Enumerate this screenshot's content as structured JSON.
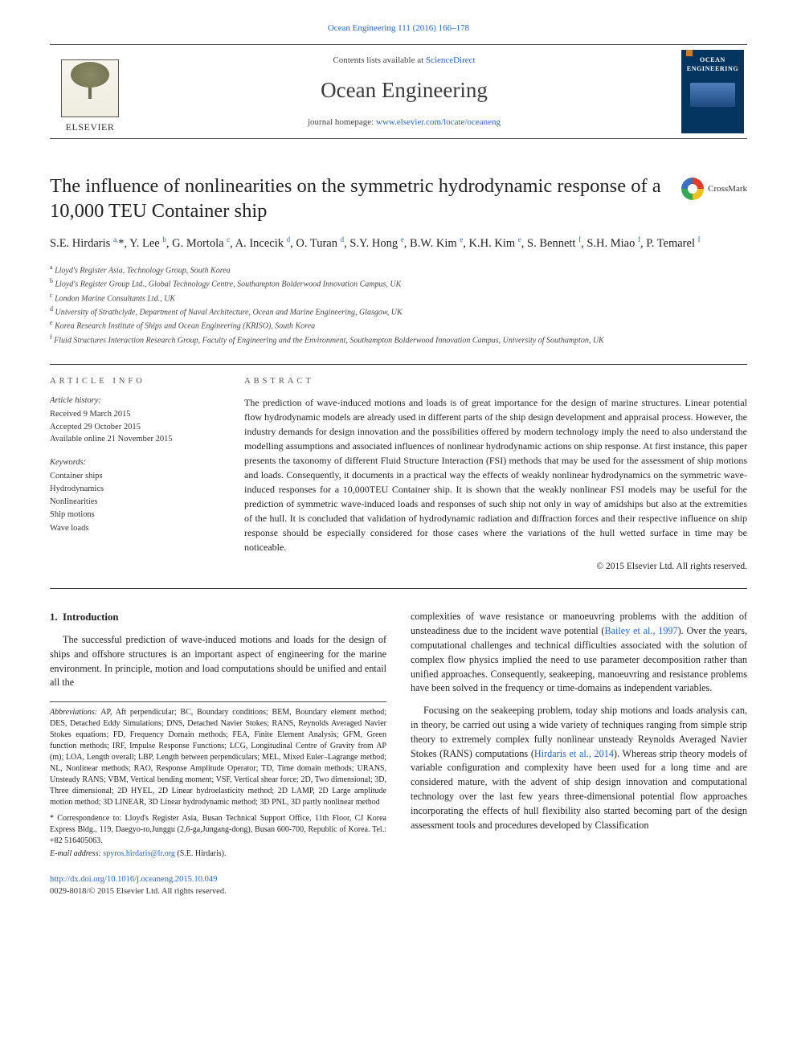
{
  "header": {
    "journal_ref": "Ocean Engineering 111 (2016) 166–178",
    "contents_prefix": "Contents lists available at ",
    "contents_link": "ScienceDirect",
    "journal_name": "Ocean Engineering",
    "homepage_prefix": "journal homepage: ",
    "homepage_url": "www.elsevier.com/locate/oceaneng",
    "publisher_name": "ELSEVIER",
    "cover_title": "OCEAN ENGINEERING"
  },
  "crossmark_label": "CrossMark",
  "article": {
    "title": "The influence of nonlinearities on the symmetric hydrodynamic response of a 10,000 TEU Container ship",
    "authors_html": "S.E. Hirdaris <sup>a,</sup><span class='ast'>*</span>, Y. Lee <sup>b</sup>, G. Mortola <sup>c</sup>, A. Incecik <sup>d</sup>, O. Turan <sup>d</sup>, S.Y. Hong <sup>e</sup>, B.W. Kim <sup>e</sup>, K.H. Kim <sup>e</sup>, S. Bennett <sup>f</sup>, S.H. Miao <sup>f</sup>, P. Temarel <sup>f</sup>",
    "affiliations": [
      "a Lloyd's Register Asia, Technology Group, South Korea",
      "b Lloyd's Register Group Ltd., Global Technology Centre, Southampton Bolderwood Innovation Campus, UK",
      "c London Marine Consultants Ltd., UK",
      "d University of Strathclyde, Department of Naval Architecture, Ocean and Marine Engineering, Glasgow, UK",
      "e Korea Research Institute of Ships and Ocean Engineering (KRISO), South Korea",
      "f Fluid Structures Interaction Research Group, Faculty of Engineering and the Environment, Southampton Bolderwood Innovation Campus, University of Southampton, UK"
    ]
  },
  "info": {
    "section_label": "article info",
    "history_label": "Article history:",
    "history": [
      "Received 9 March 2015",
      "Accepted 29 October 2015",
      "Available online 21 November 2015"
    ],
    "keywords_label": "Keywords:",
    "keywords": [
      "Container ships",
      "Hydrodynamics",
      "Nonlinearities",
      "Ship motions",
      "Wave loads"
    ]
  },
  "abstract": {
    "section_label": "abstract",
    "text": "The prediction of wave-induced motions and loads is of great importance for the design of marine structures. Linear potential flow hydrodynamic models are already used in different parts of the ship design development and appraisal process. However, the industry demands for design innovation and the possibilities offered by modern technology imply the need to also understand the modelling assumptions and associated influences of nonlinear hydrodynamic actions on ship response. At first instance, this paper presents the taxonomy of different Fluid Structure Interaction (FSI) methods that may be used for the assessment of ship motions and loads. Consequently, it documents in a practical way the effects of weakly nonlinear hydrodynamics on the symmetric wave-induced responses for a 10,000TEU Container ship. It is shown that the weakly nonlinear FSI models may be useful for the prediction of symmetric wave-induced loads and responses of such ship not only in way of amidships but also at the extremities of the hull. It is concluded that validation of hydrodynamic radiation and diffraction forces and their respective influence on ship response should be especially considered for those cases where the variations of the hull wetted surface in time may be noticeable.",
    "copyright": "© 2015 Elsevier Ltd. All rights reserved."
  },
  "body": {
    "section_number": "1.",
    "section_title": "Introduction",
    "p1": "The successful prediction of wave-induced motions and loads for the design of ships and offshore structures is an important aspect of engineering for the marine environment. In principle, motion and load computations should be unified and entail all the",
    "p2a": "complexities of wave resistance or manoeuvring problems with the addition of unsteadiness due to the incident wave potential (",
    "p2_cite": "Bailey et al., 1997",
    "p2b": "). Over the years, computational challenges and technical difficulties associated with the solution of complex flow physics implied the need to use parameter decomposition rather than unified approaches. Consequently, seakeeping, manoeuvring and resistance problems have been solved in the frequency or time-domains as independent variables.",
    "p3a": "Focusing on the seakeeping problem, today ship motions and loads analysis can, in theory, be carried out using a wide variety of techniques ranging from simple strip theory to extremely complex fully nonlinear unsteady Reynolds Averaged Navier Stokes (RANS) computations (",
    "p3_cite": "Hirdaris et al., 2014",
    "p3b": "). Whereas strip theory models of variable configuration and complexity have been used for a long time and are considered mature, with the advent of ship design innovation and computational technology over the last few years three-dimensional potential flow approaches incorporating the effects of hull flexibility also started becoming part of the design assessment tools and procedures developed by Classification"
  },
  "footnotes": {
    "abbr_label": "Abbreviations:",
    "abbr_text": " AP, Aft perpendicular; BC, Boundary conditions; BEM, Boundary element method; DES, Detached Eddy Simulations; DNS, Detached Navier Stokes; RANS, Reynolds Averaged Navier Stokes equations; FD, Frequency Domain methods; FEA, Finite Element Analysis; GFM, Green function methods; IRF, Impulse Response Functions; LCG, Longitudinal Centre of Gravity from AP (m); LOA, Length overall; LBP, Length between perpendiculars; MEL, Mixed Euler–Lagrange method; NL, Nonlinear methods; RAO, Response Amplitude Operator; TD, Time domain methods; URANS, Unsteady RANS; VBM, Vertical bending moment; VSF, Vertical shear force; 2D, Two dimensional; 3D, Three dimensional; 2D HYEL, 2D Linear hydroelasticity method; 2D LAMP, 2D Large amplitude motion method; 3D LINEAR, 3D Linear hydrodynamic method; 3D PNL, 3D partly nonlinear method",
    "corr_label": "* Correspondence to:",
    "corr_text": " Lloyd's Register Asia, Busan Technical Support Office, 11th Floor, CJ Korea Express Bldg., 119, Daegyo-ro,Junggu (2,6-ga,Jungang-dong), Busan 600-700, Republic of Korea. Tel.: +82 516405063.",
    "email_label": "E-mail address: ",
    "email": "spyros.hirdaris@lr.org",
    "email_suffix": " (S.E. Hirdaris)."
  },
  "doi": {
    "link": "http://dx.doi.org/10.1016/j.oceaneng.2015.10.049",
    "issn_line": "0029-8018/© 2015 Elsevier Ltd. All rights reserved."
  },
  "colors": {
    "link": "#2a66b8",
    "text": "#222222",
    "rule": "#333333",
    "cover_bg": "#02355f"
  }
}
